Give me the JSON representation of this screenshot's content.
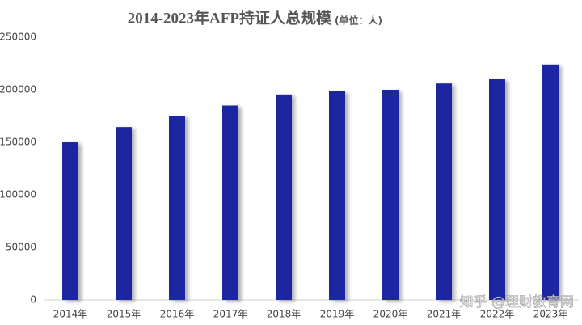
{
  "chart_data": {
    "type": "bar",
    "title": "2014-2023年AFP持证人总规模",
    "subtitle": "(单位：人)",
    "categories": [
      "2014年",
      "2015年",
      "2016年",
      "2017年",
      "2018年",
      "2019年",
      "2020年",
      "2021年",
      "2022年",
      "2023年"
    ],
    "values": [
      150000,
      164500,
      175000,
      185000,
      195500,
      198500,
      200000,
      206000,
      210000,
      224000
    ],
    "color": "#1f28a0",
    "ylim": [
      0,
      250000
    ],
    "yticks": [
      0,
      50000,
      100000,
      150000,
      200000,
      250000
    ],
    "grid": false,
    "watermark": "知乎 @理财教育网"
  }
}
